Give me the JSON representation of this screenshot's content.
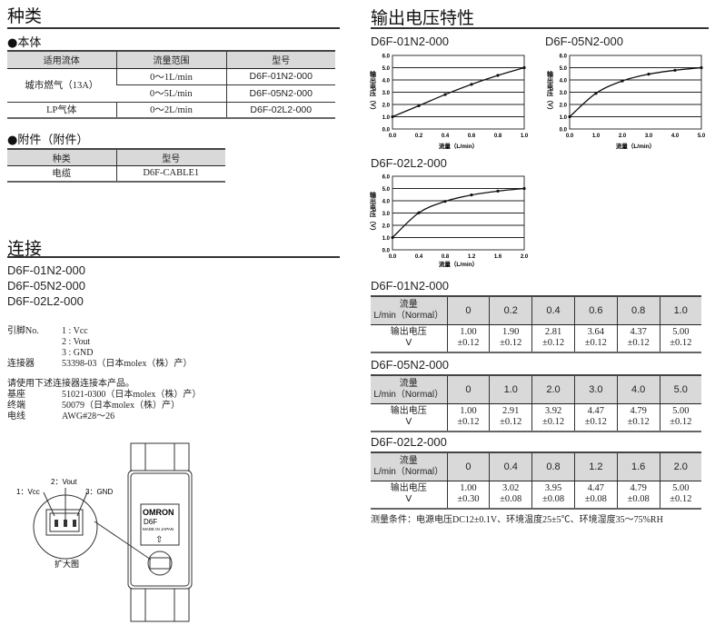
{
  "left": {
    "types_title": "种类",
    "body_title": "●本体",
    "body_table": {
      "headers": [
        "适用流体",
        "流量范围",
        "型号"
      ],
      "fluid1": "城市燃气（13A）",
      "fluid2": "LP气体",
      "rows": [
        [
          "0～1L/min",
          "D6F-01N2-000"
        ],
        [
          "0～5L/min",
          "D6F-05N2-000"
        ],
        [
          "0～2L/min",
          "D6F-02L2-000"
        ]
      ]
    },
    "acc_title": "●附件（附件）",
    "acc_table": {
      "headers": [
        "种类",
        "型号"
      ],
      "row": [
        "电缆",
        "D6F-CABLE1"
      ]
    },
    "conn_title": "连接",
    "models": [
      "D6F-01N2-000",
      "D6F-05N2-000",
      "D6F-02L2-000"
    ],
    "pin_label": "引脚No.",
    "pins": [
      "1 : Vcc",
      "2 : Vout",
      "3 : GND"
    ],
    "connector_label": "连接器",
    "connector_value": "53398-03（日本molex（株）产）",
    "use_note": "请使用下述连接器连接本产品。",
    "specs": [
      [
        "基座",
        "51021-0300（日本molex（株）产）"
      ],
      [
        "终端",
        "50079（日本molex（株）产）"
      ],
      [
        "电线",
        "AWG#28～26"
      ]
    ],
    "diagram": {
      "pin1": "1：Vcc",
      "pin2": "2：Vout",
      "pin3": "3：GND",
      "caption": "扩大图",
      "logo": "OMRON",
      "device": "D6F",
      "made": "MADE IN JAPAN"
    }
  },
  "right": {
    "title": "输出电压特性",
    "note": "测量条件：电源电压DC12±0.1V、环境温度25±5℃、环境湿度35～75%RH",
    "tables": [
      {
        "title": "D6F-01N2-000",
        "h1": "流量",
        "h2": "L/min（Normal）",
        "flow": [
          "0",
          "0.2",
          "0.4",
          "0.6",
          "0.8",
          "1.0"
        ],
        "r1": "输出电压",
        "r2": "V",
        "vals": [
          "1.00",
          "1.90",
          "2.81",
          "3.64",
          "4.37",
          "5.00"
        ],
        "tol": [
          "±0.12",
          "±0.12",
          "±0.12",
          "±0.12",
          "±0.12",
          "±0.12"
        ]
      },
      {
        "title": "D6F-05N2-000",
        "h1": "流量",
        "h2": "L/min（Normal）",
        "flow": [
          "0",
          "1.0",
          "2.0",
          "3.0",
          "4.0",
          "5.0"
        ],
        "r1": "输出电压",
        "r2": "V",
        "vals": [
          "1.00",
          "2.91",
          "3.92",
          "4.47",
          "4.79",
          "5.00"
        ],
        "tol": [
          "±0.12",
          "±0.12",
          "±0.12",
          "±0.12",
          "±0.12",
          "±0.12"
        ]
      },
      {
        "title": "D6F-02L2-000",
        "h1": "流量",
        "h2": "L/min（Normal）",
        "flow": [
          "0",
          "0.4",
          "0.8",
          "1.2",
          "1.6",
          "2.0"
        ],
        "r1": "输出电压",
        "r2": "V",
        "vals": [
          "1.00",
          "3.02",
          "3.95",
          "4.47",
          "4.79",
          "5.00"
        ],
        "tol": [
          "±0.30",
          "±0.08",
          "±0.08",
          "±0.08",
          "±0.08",
          "±0.12"
        ]
      }
    ]
  },
  "chart_data": [
    {
      "type": "line",
      "title": "D6F-01N2-000",
      "xlabel": "流量（L/min）",
      "ylabel": "输出电压（V）",
      "xlim": [
        0,
        1.0
      ],
      "ylim": [
        0,
        6.0
      ],
      "grid": true,
      "xticks": [
        "0.0",
        "0.2",
        "0.4",
        "0.6",
        "0.8",
        "1.0"
      ],
      "yticks": [
        "0.0",
        "1.0",
        "2.0",
        "3.0",
        "4.0",
        "5.0",
        "6.0"
      ],
      "x": [
        0,
        0.2,
        0.4,
        0.6,
        0.8,
        1.0
      ],
      "y": [
        1.0,
        1.9,
        2.81,
        3.64,
        4.37,
        5.0
      ]
    },
    {
      "type": "line",
      "title": "D6F-05N2-000",
      "xlabel": "流量（L/min）",
      "ylabel": "输出电压（V）",
      "xlim": [
        0,
        5.0
      ],
      "ylim": [
        0,
        6.0
      ],
      "grid": true,
      "xticks": [
        "0.0",
        "1.0",
        "2.0",
        "3.0",
        "4.0",
        "5.0"
      ],
      "yticks": [
        "0.0",
        "1.0",
        "2.0",
        "3.0",
        "4.0",
        "5.0",
        "6.0"
      ],
      "x": [
        0,
        1,
        2,
        3,
        4,
        5
      ],
      "y": [
        1.0,
        2.91,
        3.92,
        4.47,
        4.79,
        5.0
      ]
    },
    {
      "type": "line",
      "title": "D6F-02L2-000",
      "xlabel": "流量（L/min）",
      "ylabel": "输出电压（V）",
      "xlim": [
        0,
        2.0
      ],
      "ylim": [
        0,
        6.0
      ],
      "grid": true,
      "xticks": [
        "0.0",
        "0.4",
        "0.8",
        "1.2",
        "1.6",
        "2.0"
      ],
      "yticks": [
        "0.0",
        "1.0",
        "2.0",
        "3.0",
        "4.0",
        "5.0",
        "6.0"
      ],
      "x": [
        0,
        0.4,
        0.8,
        1.2,
        1.6,
        2.0
      ],
      "y": [
        1.0,
        3.02,
        3.95,
        4.47,
        4.79,
        5.0
      ]
    }
  ]
}
